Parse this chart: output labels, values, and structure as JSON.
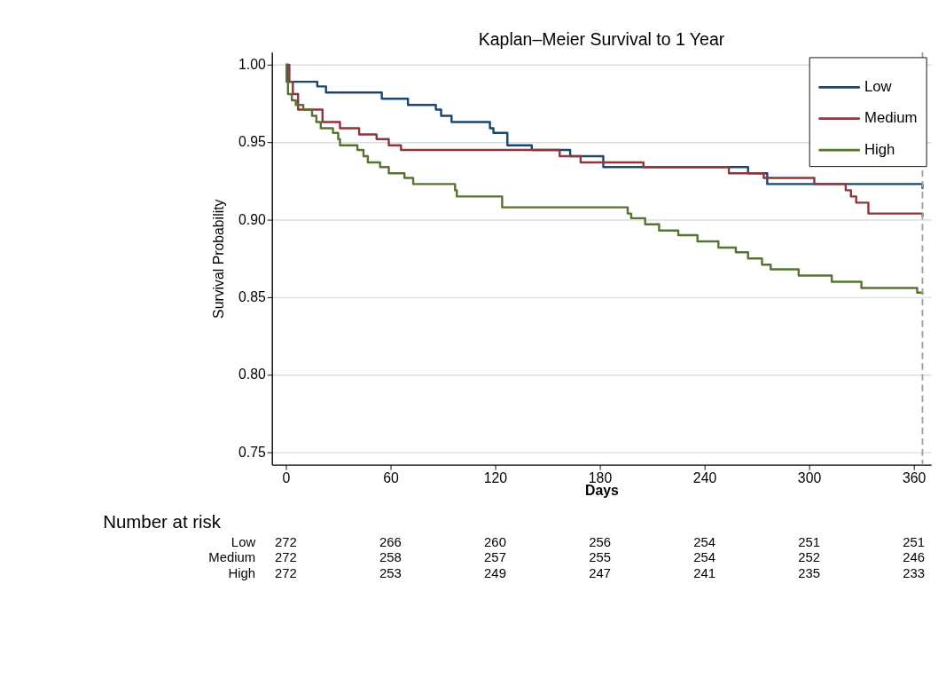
{
  "chart_data": {
    "type": "step",
    "title": "Kaplan–Meier Survival to 1 Year",
    "xlabel": "Days",
    "ylabel": "Survival Probability",
    "xlim": [
      -8,
      370
    ],
    "ylim": [
      0.742,
      1.008
    ],
    "xticks": [
      0,
      60,
      120,
      180,
      240,
      300,
      360
    ],
    "yticks": [
      {
        "value": 0.75,
        "label": "0.75"
      },
      {
        "value": 0.8,
        "label": "0.80"
      },
      {
        "value": 0.85,
        "label": "0.85"
      },
      {
        "value": 0.9,
        "label": "0.90"
      },
      {
        "value": 0.95,
        "label": "0.95"
      },
      {
        "value": 1,
        "label": "1.00"
      }
    ],
    "grid": "y",
    "legend": "top right",
    "line_style": "solid",
    "marker": "none",
    "series": [
      {
        "name": "Low",
        "color": "#1a476f",
        "x": [
          0,
          1,
          18,
          23,
          55,
          70,
          86,
          89,
          95,
          117,
          119,
          127,
          141,
          163,
          182,
          265,
          276,
          365
        ],
        "values": [
          1.0,
          0.989,
          0.986,
          0.982,
          0.978,
          0.974,
          0.971,
          0.967,
          0.963,
          0.959,
          0.956,
          0.948,
          0.945,
          0.941,
          0.934,
          0.93,
          0.923,
          0.92
        ]
      },
      {
        "name": "Medium",
        "color": "#90353b",
        "x": [
          0,
          2,
          4,
          7,
          21,
          31,
          42,
          52,
          59,
          66,
          157,
          169,
          205,
          254,
          274,
          303,
          321,
          324,
          327,
          334,
          365
        ],
        "values": [
          1.0,
          0.989,
          0.981,
          0.971,
          0.963,
          0.959,
          0.955,
          0.952,
          0.948,
          0.945,
          0.941,
          0.937,
          0.934,
          0.93,
          0.927,
          0.923,
          0.919,
          0.915,
          0.911,
          0.904,
          0.902
        ]
      },
      {
        "name": "High",
        "color": "#55752f",
        "x": [
          0,
          0.4,
          1.2,
          3.4,
          5.7,
          10,
          15,
          17.5,
          20,
          27,
          30,
          31,
          41,
          44.5,
          47,
          54,
          59,
          68,
          73,
          97,
          98,
          124,
          196,
          198,
          206,
          214,
          225,
          236,
          248,
          258,
          265,
          273,
          278,
          294,
          313,
          330,
          362,
          365
        ],
        "values": [
          1.0,
          0.989,
          0.981,
          0.977,
          0.974,
          0.971,
          0.967,
          0.963,
          0.959,
          0.956,
          0.952,
          0.948,
          0.945,
          0.941,
          0.937,
          0.934,
          0.93,
          0.927,
          0.923,
          0.919,
          0.915,
          0.908,
          0.904,
          0.901,
          0.897,
          0.893,
          0.89,
          0.886,
          0.882,
          0.879,
          0.875,
          0.871,
          0.868,
          0.864,
          0.86,
          0.856,
          0.853,
          0.852
        ]
      }
    ],
    "ref_lines": [
      {
        "axis": "x",
        "value": 365,
        "color": "#a0a0a0",
        "line_style": "dashed"
      }
    ],
    "annotations": [
      "Number at risk",
      "Low",
      "Medium",
      "High",
      "272",
      "266",
      "260",
      "256",
      "254",
      "251",
      "251",
      "272",
      "258",
      "257",
      "255",
      "254",
      "252",
      "246",
      "272",
      "253",
      "249",
      "247",
      "241",
      "235",
      "233"
    ]
  }
}
